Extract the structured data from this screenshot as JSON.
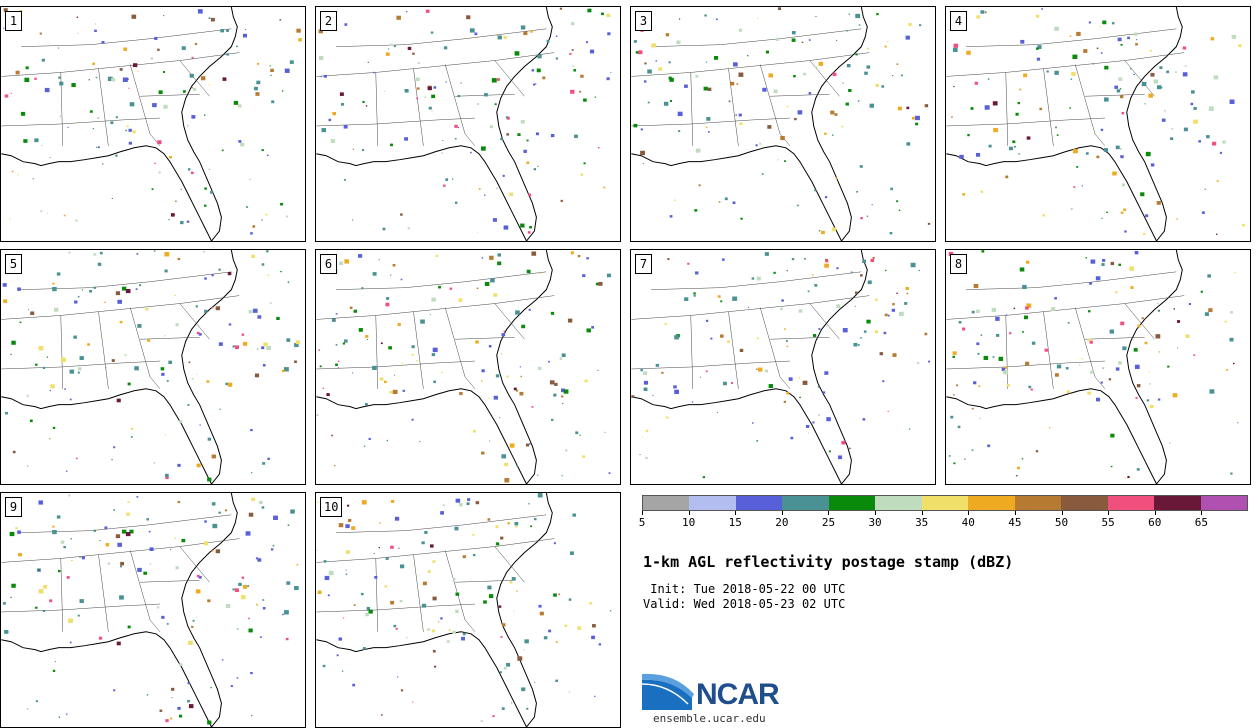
{
  "panels": [
    {
      "number": "1",
      "seed": 11
    },
    {
      "number": "2",
      "seed": 23
    },
    {
      "number": "3",
      "seed": 37
    },
    {
      "number": "4",
      "seed": 41
    },
    {
      "number": "5",
      "seed": 53
    },
    {
      "number": "6",
      "seed": 67
    },
    {
      "number": "7",
      "seed": 71
    },
    {
      "number": "8",
      "seed": 83
    },
    {
      "number": "9",
      "seed": 97
    },
    {
      "number": "10",
      "seed": 101
    }
  ],
  "colorbar": {
    "colors": [
      "#a5a5a5",
      "#b4bdf0",
      "#5760d8",
      "#4a9194",
      "#0a8a0a",
      "#bfdcbf",
      "#f0df69",
      "#eeaa21",
      "#b67a30",
      "#8a5a3e",
      "#f0507e",
      "#6a1838",
      "#b050b0"
    ],
    "tick_labels": [
      "5",
      "10",
      "15",
      "20",
      "25",
      "30",
      "35",
      "40",
      "45",
      "50",
      "55",
      "60",
      "65"
    ]
  },
  "title": "1-km AGL reflectivity postage stamp (dBZ)",
  "init": " Init: Tue 2018-05-22 00 UTC",
  "valid": "Valid: Wed 2018-05-23 02 UTC",
  "logo": {
    "name": "NCAR",
    "url": "ensemble.ucar.edu"
  }
}
